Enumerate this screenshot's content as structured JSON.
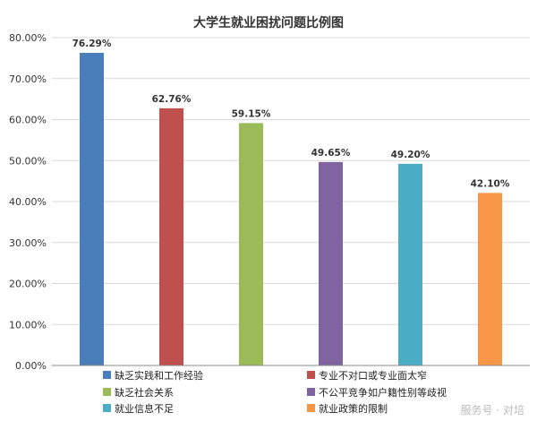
{
  "chart_data": {
    "type": "bar",
    "title": "大学生就业困扰问题比例图",
    "categories": [
      "缺乏实践和工作经验",
      "专业不对口或专业面太窄",
      "缺乏社会关系",
      "不公平竞争如户籍性别等歧视",
      "就业信息不足",
      "就业政策的限制"
    ],
    "values": [
      76.29,
      62.76,
      59.15,
      49.65,
      49.2,
      42.1
    ],
    "data_labels": [
      "76.29%",
      "62.76%",
      "59.15%",
      "49.65%",
      "49.20%",
      "42.10%"
    ],
    "colors": [
      "#4a7ebb",
      "#c0504d",
      "#9bbb59",
      "#8064a2",
      "#4bacc6",
      "#f79646"
    ],
    "ylim": [
      0,
      80
    ],
    "yticks": [
      0,
      10,
      20,
      30,
      40,
      50,
      60,
      70,
      80
    ],
    "ytick_labels": [
      "0.00%",
      "10.00%",
      "20.00%",
      "30.00%",
      "40.00%",
      "50.00%",
      "60.00%",
      "70.00%",
      "80.00%"
    ],
    "grid": true,
    "legend_placement": "bottom"
  },
  "watermark": "服务号 · 对培"
}
